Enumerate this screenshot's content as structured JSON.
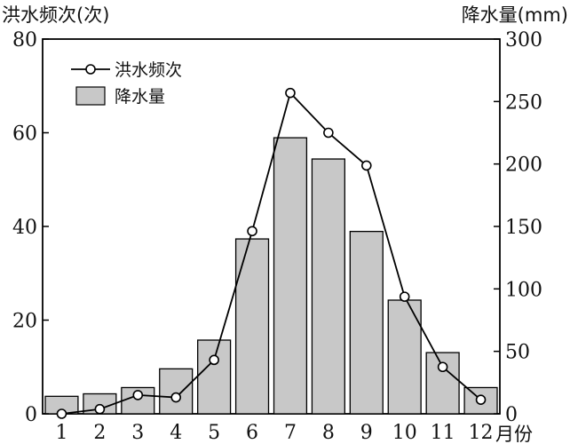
{
  "chart_data": {
    "type": "bar",
    "left_axis_title": "洪水频次(次)",
    "right_axis_title": "降水量(mm)",
    "x_axis_unit": "月份",
    "categories": [
      "1",
      "2",
      "3",
      "4",
      "5",
      "6",
      "7",
      "8",
      "9",
      "10",
      "11",
      "12"
    ],
    "left_ticks": [
      "0",
      "20",
      "40",
      "60",
      "80"
    ],
    "right_ticks": [
      "0",
      "50",
      "100",
      "150",
      "200",
      "250",
      "300"
    ],
    "left_ylim": [
      0,
      80
    ],
    "right_ylim": [
      0,
      300
    ],
    "series": [
      {
        "name": "洪水频次",
        "kind": "line",
        "axis": "left",
        "values": [
          0,
          1,
          4,
          3.5,
          11.5,
          39,
          68.5,
          60,
          53,
          25,
          10,
          3
        ]
      },
      {
        "name": "降水量",
        "kind": "bar",
        "axis": "right",
        "values": [
          14,
          16,
          21,
          36,
          59,
          140,
          221,
          204,
          146,
          91,
          49,
          21
        ]
      }
    ],
    "legend": [
      "洪水频次",
      "降水量"
    ],
    "legend_position": "top-left",
    "grid": false,
    "colors": {
      "bar_fill": "#c8c8c8",
      "bar_stroke": "#000000",
      "line": "#000000",
      "marker_fill": "#ffffff"
    }
  }
}
